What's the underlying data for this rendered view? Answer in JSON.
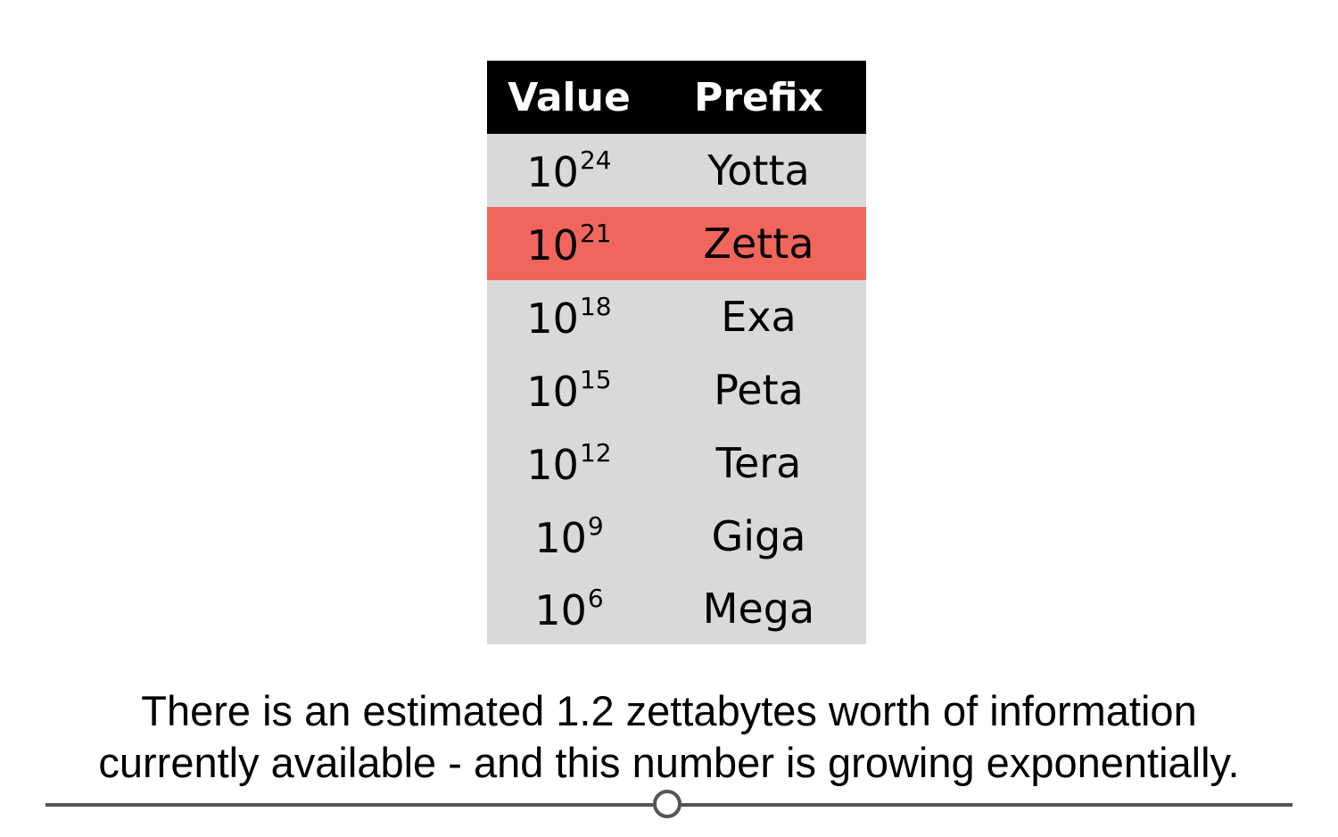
{
  "table": {
    "headers": [
      "Value",
      "Prefix"
    ],
    "highlight_color": "#f1665c",
    "rows": [
      {
        "base": "10",
        "exponent": "24",
        "prefix": "Yotta",
        "highlighted": false
      },
      {
        "base": "10",
        "exponent": "21",
        "prefix": "Zetta",
        "highlighted": true
      },
      {
        "base": "10",
        "exponent": "18",
        "prefix": "Exa",
        "highlighted": false
      },
      {
        "base": "10",
        "exponent": "15",
        "prefix": "Peta",
        "highlighted": false
      },
      {
        "base": "10",
        "exponent": "12",
        "prefix": "Tera",
        "highlighted": false
      },
      {
        "base": "10",
        "exponent": "9",
        "prefix": "Giga",
        "highlighted": false
      },
      {
        "base": "10",
        "exponent": "6",
        "prefix": "Mega",
        "highlighted": false
      }
    ]
  },
  "caption": {
    "line1": "There is an estimated 1.2 zettabytes worth of information",
    "line2": "currently available - and this number is growing exponentially."
  },
  "progress": {
    "fraction": 0.5
  }
}
